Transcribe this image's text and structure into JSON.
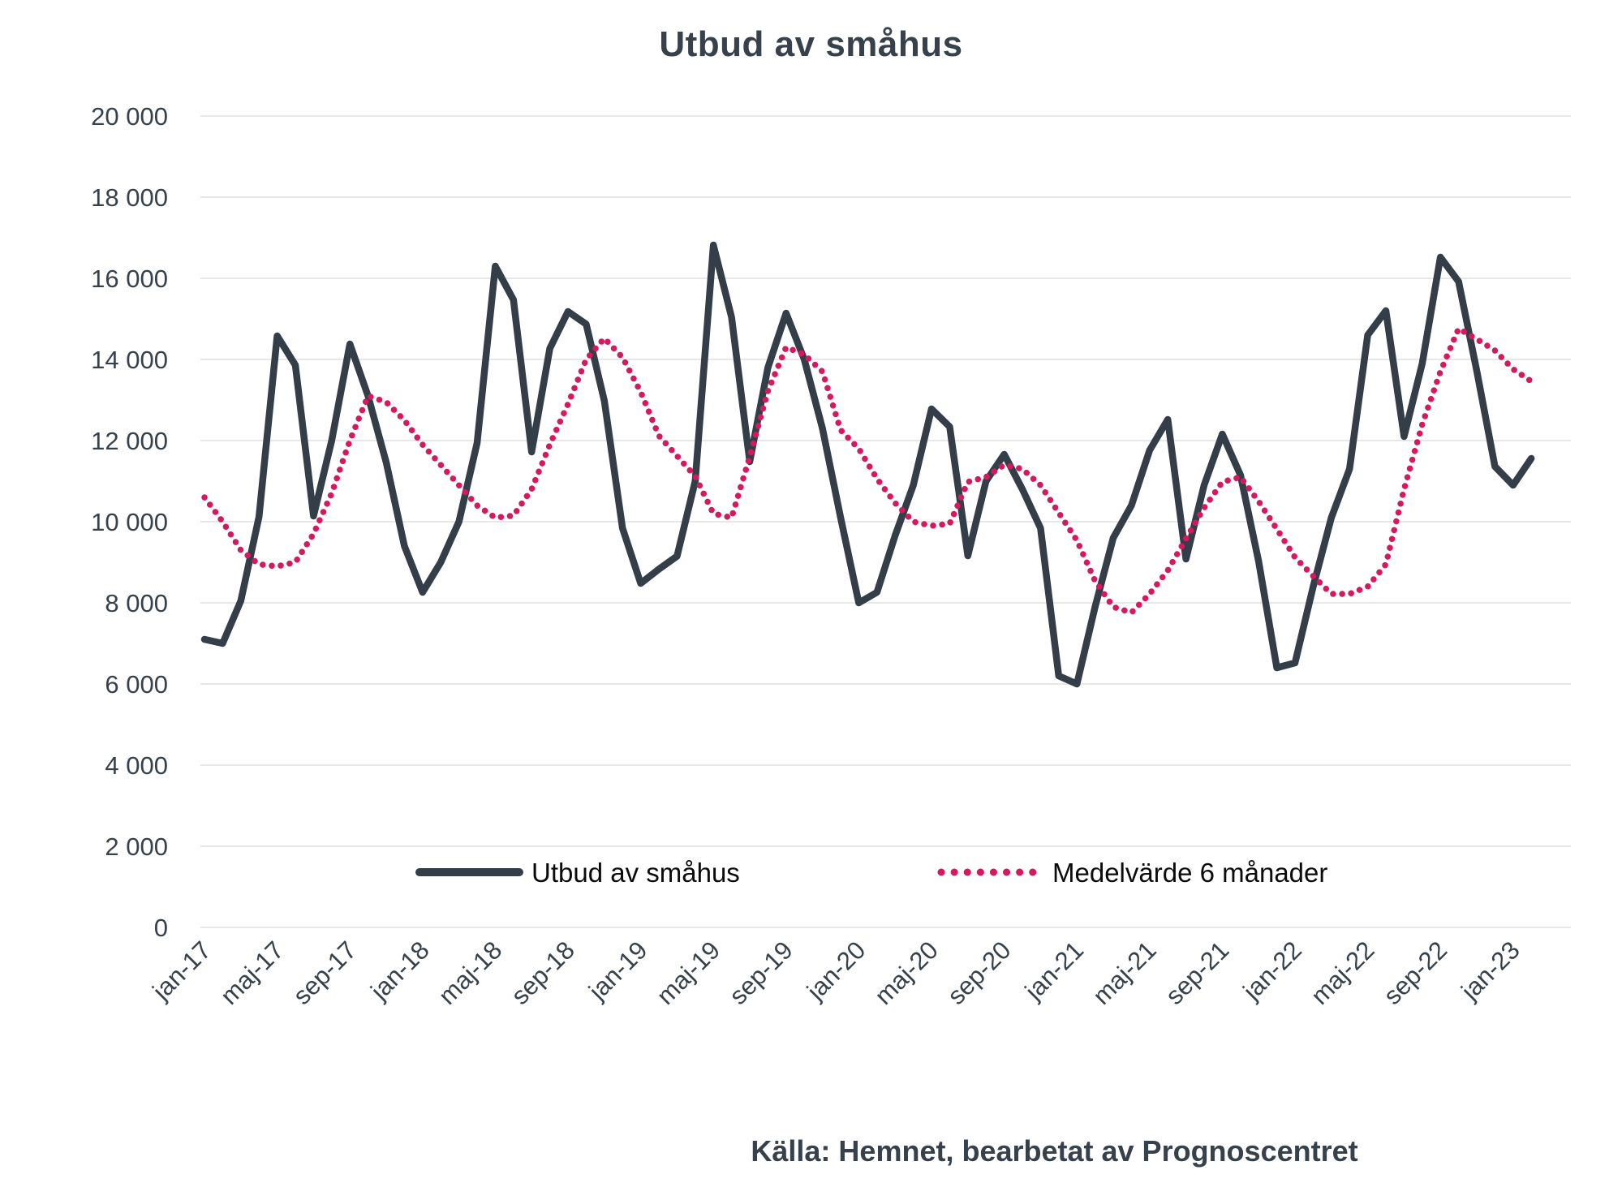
{
  "chart_data": {
    "type": "line",
    "title": "Utbud av småhus",
    "source": "Källa: Hemnet, bearbetat av Prognoscentret",
    "ylabel": "",
    "xlabel": "",
    "ylim": [
      0,
      20000
    ],
    "y_tick_step": 2000,
    "grid": "horizontal",
    "legend_position": "bottom-inside",
    "y_tick_labels": [
      "0",
      "2 000",
      "4 000",
      "6 000",
      "8 000",
      "10 000",
      "12 000",
      "14 000",
      "16 000",
      "18 000",
      "20 000"
    ],
    "x_tick_labels": [
      "jan-17",
      "maj-17",
      "sep-17",
      "jan-18",
      "maj-18",
      "sep-18",
      "jan-19",
      "maj-19",
      "sep-19",
      "jan-20",
      "maj-20",
      "sep-20",
      "jan-21",
      "maj-21",
      "sep-21",
      "jan-22",
      "maj-22",
      "sep-22",
      "jan-23"
    ],
    "x_tick_every_n_months": 4,
    "months": [
      "jan-17",
      "feb-17",
      "mar-17",
      "apr-17",
      "maj-17",
      "jun-17",
      "jul-17",
      "aug-17",
      "sep-17",
      "okt-17",
      "nov-17",
      "dec-17",
      "jan-18",
      "feb-18",
      "mar-18",
      "apr-18",
      "maj-18",
      "jun-18",
      "jul-18",
      "aug-18",
      "sep-18",
      "okt-18",
      "nov-18",
      "dec-18",
      "jan-19",
      "feb-19",
      "mar-19",
      "apr-19",
      "maj-19",
      "jun-19",
      "jul-19",
      "aug-19",
      "sep-19",
      "okt-19",
      "nov-19",
      "dec-19",
      "jan-20",
      "feb-20",
      "mar-20",
      "apr-20",
      "maj-20",
      "jun-20",
      "jul-20",
      "aug-20",
      "sep-20",
      "okt-20",
      "nov-20",
      "dec-20",
      "jan-21",
      "feb-21",
      "mar-21",
      "apr-21",
      "maj-21",
      "jun-21",
      "jul-21",
      "aug-21",
      "sep-21",
      "okt-21",
      "nov-21",
      "dec-21",
      "jan-22",
      "feb-22",
      "mar-22",
      "apr-22",
      "maj-22",
      "jun-22",
      "jul-22",
      "aug-22",
      "sep-22",
      "okt-22",
      "nov-22",
      "dec-22",
      "jan-23",
      "feb-23"
    ],
    "series": [
      {
        "name": "Utbud av småhus",
        "style": "solid",
        "color": "#333E48",
        "values": [
          7100,
          7000,
          8050,
          10120,
          14580,
          13860,
          10140,
          12000,
          14380,
          13100,
          11460,
          9400,
          8260,
          9000,
          10000,
          11940,
          16300,
          15470,
          11720,
          14270,
          15180,
          14870,
          12980,
          9840,
          8480,
          8830,
          9150,
          11000,
          16820,
          15040,
          11480,
          13800,
          15140,
          14000,
          12300,
          10100,
          8000,
          8260,
          9660,
          10900,
          12780,
          12340,
          9160,
          11000,
          11660,
          10800,
          9840,
          6200,
          6000,
          7900,
          9600,
          10400,
          11760,
          12520,
          9080,
          10900,
          12160,
          11150,
          9020,
          6400,
          6520,
          8400,
          10100,
          11300,
          14600,
          15200,
          12100,
          13900,
          16520,
          15920,
          13720,
          11360,
          10900,
          11560
        ]
      },
      {
        "name": "Medelvärde 6 månader",
        "style": "dotted",
        "color": "#D6195F",
        "values": [
          10600,
          10000,
          9300,
          8950,
          8900,
          9000,
          9700,
          10700,
          12000,
          13100,
          12950,
          12500,
          11900,
          11400,
          10900,
          10400,
          10100,
          10150,
          10800,
          11900,
          12900,
          14000,
          14520,
          14050,
          13200,
          12120,
          11620,
          11120,
          10200,
          10100,
          11600,
          13220,
          14300,
          14120,
          13700,
          12260,
          11800,
          11060,
          10460,
          10000,
          9900,
          9950,
          10980,
          11100,
          11400,
          11300,
          10900,
          10220,
          9540,
          8540,
          7900,
          7760,
          8220,
          8800,
          9580,
          10340,
          10980,
          11100,
          10500,
          9820,
          9120,
          8660,
          8220,
          8220,
          8400,
          8950,
          10800,
          12400,
          13700,
          14760,
          14500,
          14220,
          13760,
          13460
        ]
      }
    ],
    "colors": {
      "text": "#36414B",
      "gridline": "#E8E8E8",
      "background": "#FFFFFF"
    }
  }
}
